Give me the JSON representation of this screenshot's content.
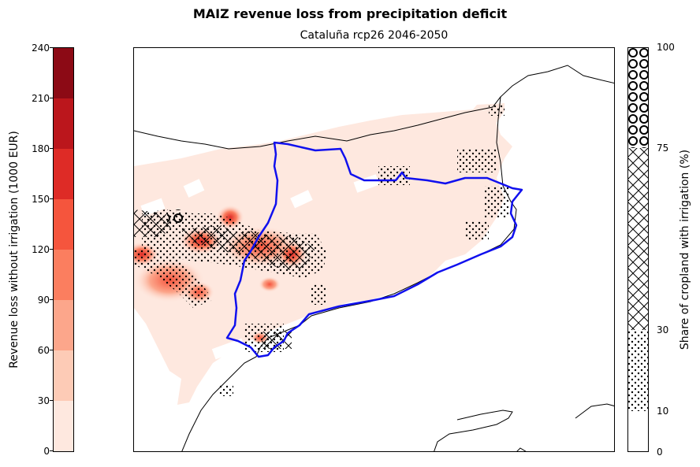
{
  "figure": {
    "title": "MAIZ revenue loss from precipitation deficit",
    "map_title": "Cataluña rcp26 2046-2050"
  },
  "left_colorbar": {
    "label": "Revenue loss without irrigation (1000 EUR)",
    "ticks": [
      "0",
      "30",
      "60",
      "90",
      "120",
      "150",
      "180",
      "210",
      "240"
    ],
    "bins": [
      {
        "range": "0-30",
        "color": "#fee8df"
      },
      {
        "range": "30-60",
        "color": "#fdcbb6"
      },
      {
        "range": "60-90",
        "color": "#fca68b"
      },
      {
        "range": "90-120",
        "color": "#fb7e5f"
      },
      {
        "range": "120-150",
        "color": "#f5553d"
      },
      {
        "range": "150-180",
        "color": "#de2b26"
      },
      {
        "range": "180-210",
        "color": "#bb161c"
      },
      {
        "range": "210-240",
        "color": "#8c0a15"
      }
    ]
  },
  "right_colorbar": {
    "label": "Share of cropland with irrigation (%)",
    "ticks": [
      "0",
      "10",
      "30",
      "75",
      "100"
    ],
    "bins": [
      {
        "range": "0-10",
        "hatch": "none"
      },
      {
        "range": "10-30",
        "hatch": "dots"
      },
      {
        "range": "30-75",
        "hatch": "cross-hatch"
      },
      {
        "range": "75-100",
        "hatch": "circles"
      }
    ]
  },
  "map": {
    "region": "Cataluña",
    "scenario": "rcp26",
    "period": "2046-2050",
    "boundary_color": "#0000ee",
    "coastline_color": "#000000"
  }
}
